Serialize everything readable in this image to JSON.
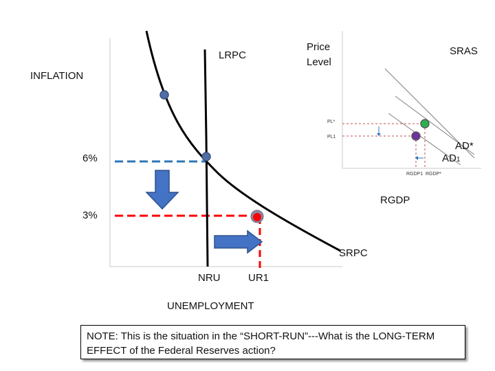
{
  "phillips": {
    "y_axis_label": "INFLATION",
    "x_axis_label": "UNEMPLOYMENT",
    "lrpc_label": "LRPC",
    "srpc_label": "SRPC",
    "tick_6": "6%",
    "tick_3": "3%",
    "nru_label": "NRU",
    "ur1_label": "UR1"
  },
  "adas": {
    "y_axis_label_line1": "Price",
    "y_axis_label_line2": "Level",
    "x_axis_label": "RGDP",
    "sras_label": "SRAS",
    "ad_star_label": "AD*",
    "ad1_label": "AD",
    "ad1_subscript": "1",
    "pl_star_label": "PL*",
    "pl1_label": "PL1",
    "rgdp1_label": "RGDP1",
    "rgdp_star_label": "RGDP*"
  },
  "note": {
    "line1": "NOTE: This is the situation in the “SHORT-RUN”---What is the LONG-TERM",
    "line2": "EFFECT of the Federal Reserves action?"
  },
  "colors": {
    "axis": "#c8c8c8",
    "curve": "#000000",
    "blue_dash": "#2e75b6",
    "red_dash": "#ff0000",
    "arrow_fill": "#4472c4",
    "arrow_stroke": "#2f528f",
    "point_blue": "#4f6ea8",
    "point_red": "#ff0000",
    "point_green": "#2bb24c",
    "point_purple": "#7030a0",
    "ad_lines": "#8a8a8a"
  }
}
